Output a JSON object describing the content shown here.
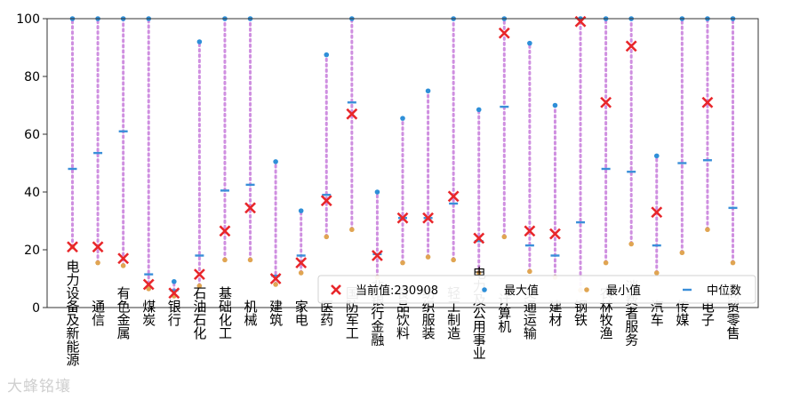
{
  "watermark": "大蜂铭壤",
  "chart_data": {
    "type": "scatter",
    "ylim": [
      0,
      100
    ],
    "yticks": [
      0,
      20,
      40,
      60,
      80,
      100
    ],
    "categories": [
      "电力设备及新能源",
      "通信",
      "有色金属",
      "煤炭",
      "银行",
      "石油石化",
      "基础化工",
      "机械",
      "建筑",
      "家电",
      "医药",
      "国防军工",
      "非银行金融",
      "食品饮料",
      "纺织服装",
      "轻工制造",
      "电力及公用事业",
      "计算机",
      "交通运输",
      "建材",
      "钢铁",
      "农林牧渔",
      "消费者服务",
      "汽车",
      "传媒",
      "电子",
      "商贸零售"
    ],
    "series": [
      {
        "name": "当前值:230908",
        "marker": "x",
        "color": "#e8262a",
        "values": [
          21,
          21,
          17,
          8,
          5,
          11.5,
          26.5,
          34.5,
          10,
          15.5,
          37,
          67,
          18,
          31,
          31,
          38.5,
          24,
          95,
          26.5,
          25.5,
          99,
          71,
          90.5,
          33,
          null,
          71,
          null
        ]
      },
      {
        "name": "最大值",
        "marker": "dot",
        "color": "#2e8fd8",
        "values": [
          100,
          100,
          100,
          100,
          9,
          92,
          100,
          100,
          50.5,
          33.5,
          87.5,
          100,
          40,
          65.5,
          75,
          100,
          68.5,
          100,
          91.5,
          70,
          100,
          100,
          100,
          52.5,
          100,
          100,
          100
        ]
      },
      {
        "name": "最小值",
        "marker": "dot",
        "color": "#e0a552",
        "values": [
          21,
          15.5,
          14.5,
          6.5,
          4,
          7.5,
          16.5,
          16.5,
          8,
          12,
          24.5,
          27,
          10.5,
          15.5,
          17.5,
          16.5,
          12,
          24.5,
          12.5,
          10.5,
          6,
          15.5,
          22,
          12,
          19,
          27,
          15.5
        ]
      },
      {
        "name": "中位数",
        "marker": "dash",
        "color": "#3a8fd9",
        "values": [
          48,
          53.5,
          61,
          11.5,
          6,
          18,
          40.5,
          42.5,
          11,
          18,
          39,
          71,
          18.5,
          31,
          31,
          36,
          23,
          69.5,
          21.5,
          18,
          29.5,
          48,
          47,
          21.5,
          50,
          51,
          34.5
        ]
      }
    ],
    "legend_position": "lower-right",
    "grid": false
  }
}
